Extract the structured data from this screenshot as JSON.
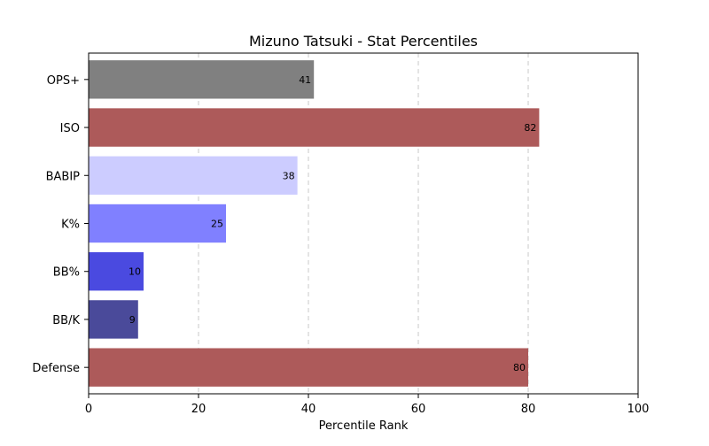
{
  "chart_data": {
    "type": "bar",
    "orientation": "horizontal",
    "title": "Mizuno Tatsuki - Stat Percentiles",
    "xlabel": "Percentile Rank",
    "ylabel": "",
    "xlim": [
      0,
      100
    ],
    "xticks": [
      "0",
      "20",
      "40",
      "60",
      "80",
      "100"
    ],
    "grid": "x-dashed",
    "categories": [
      "OPS+",
      "ISO",
      "BABIP",
      "K%",
      "BB%",
      "BB/K",
      "Defense"
    ],
    "values": [
      41,
      82,
      38,
      25,
      10,
      9,
      80
    ],
    "value_labels": [
      "41",
      "82",
      "38",
      "25",
      "10",
      "9",
      "80"
    ],
    "colors": [
      "#808080",
      "#ad5a5a",
      "#ccccff",
      "#8080ff",
      "#4a4ae0",
      "#4a4a9a",
      "#ad5a5a"
    ]
  }
}
